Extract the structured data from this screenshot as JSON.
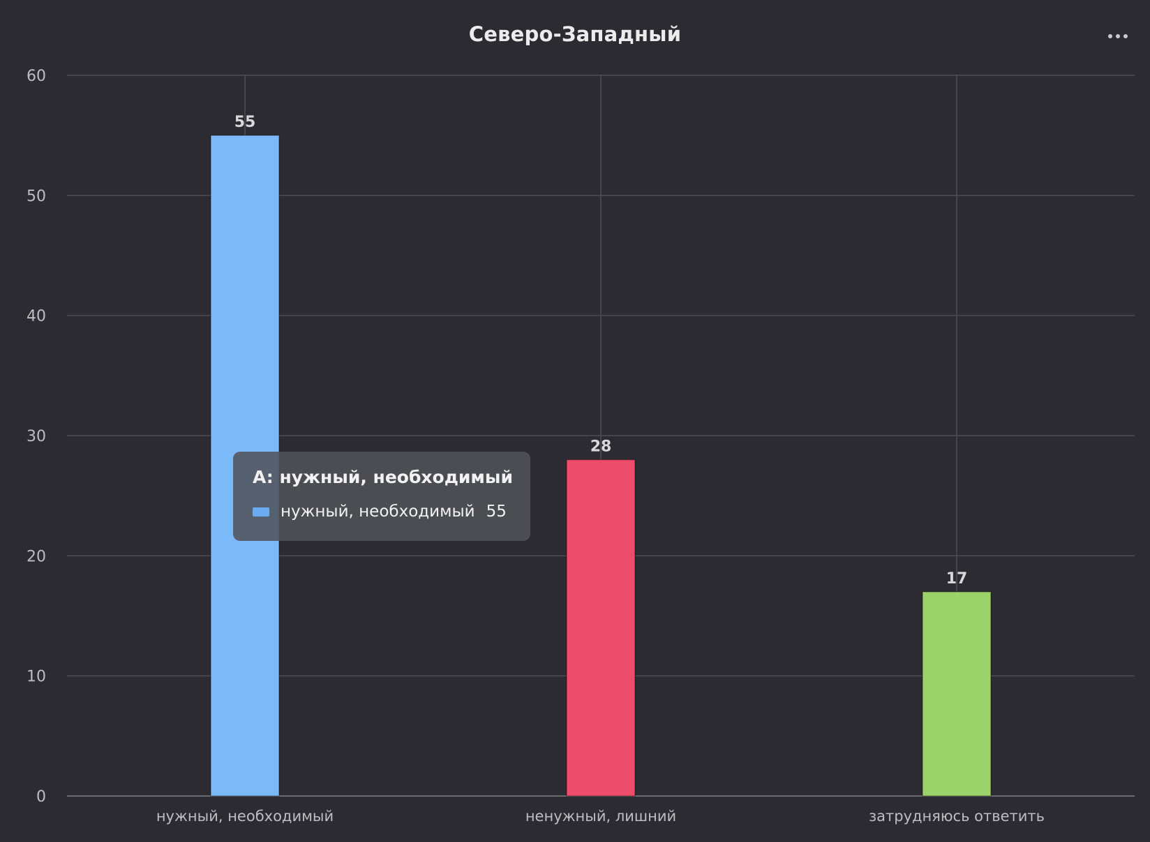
{
  "chart_data": {
    "type": "bar",
    "title": "Северо-Западный",
    "categories": [
      "нужный, необходимый",
      "ненужный, лишний",
      "затрудняюсь ответить"
    ],
    "values": [
      55,
      28,
      17
    ],
    "colors": [
      "#7cb9f8",
      "#eb4d6a",
      "#9bd36a"
    ],
    "value_labels": [
      "55",
      "28",
      "17"
    ],
    "ylim": [
      0,
      60
    ],
    "yticks": [
      0,
      10,
      20,
      30,
      40,
      50,
      60
    ],
    "grid": true,
    "xlabel": "",
    "ylabel": ""
  },
  "tooltip": {
    "title": "A: нужный, необходимый",
    "series_label": "нужный, необходимый",
    "value": "55",
    "swatch_color": "#6aaaf0"
  },
  "menu": {
    "icon": "more-horizontal-icon"
  },
  "theme": {
    "background": "#2c2b32",
    "grid_color": "#4e4d55",
    "axis_color": "#6a6a70",
    "tick_color": "#bdbdc2"
  }
}
